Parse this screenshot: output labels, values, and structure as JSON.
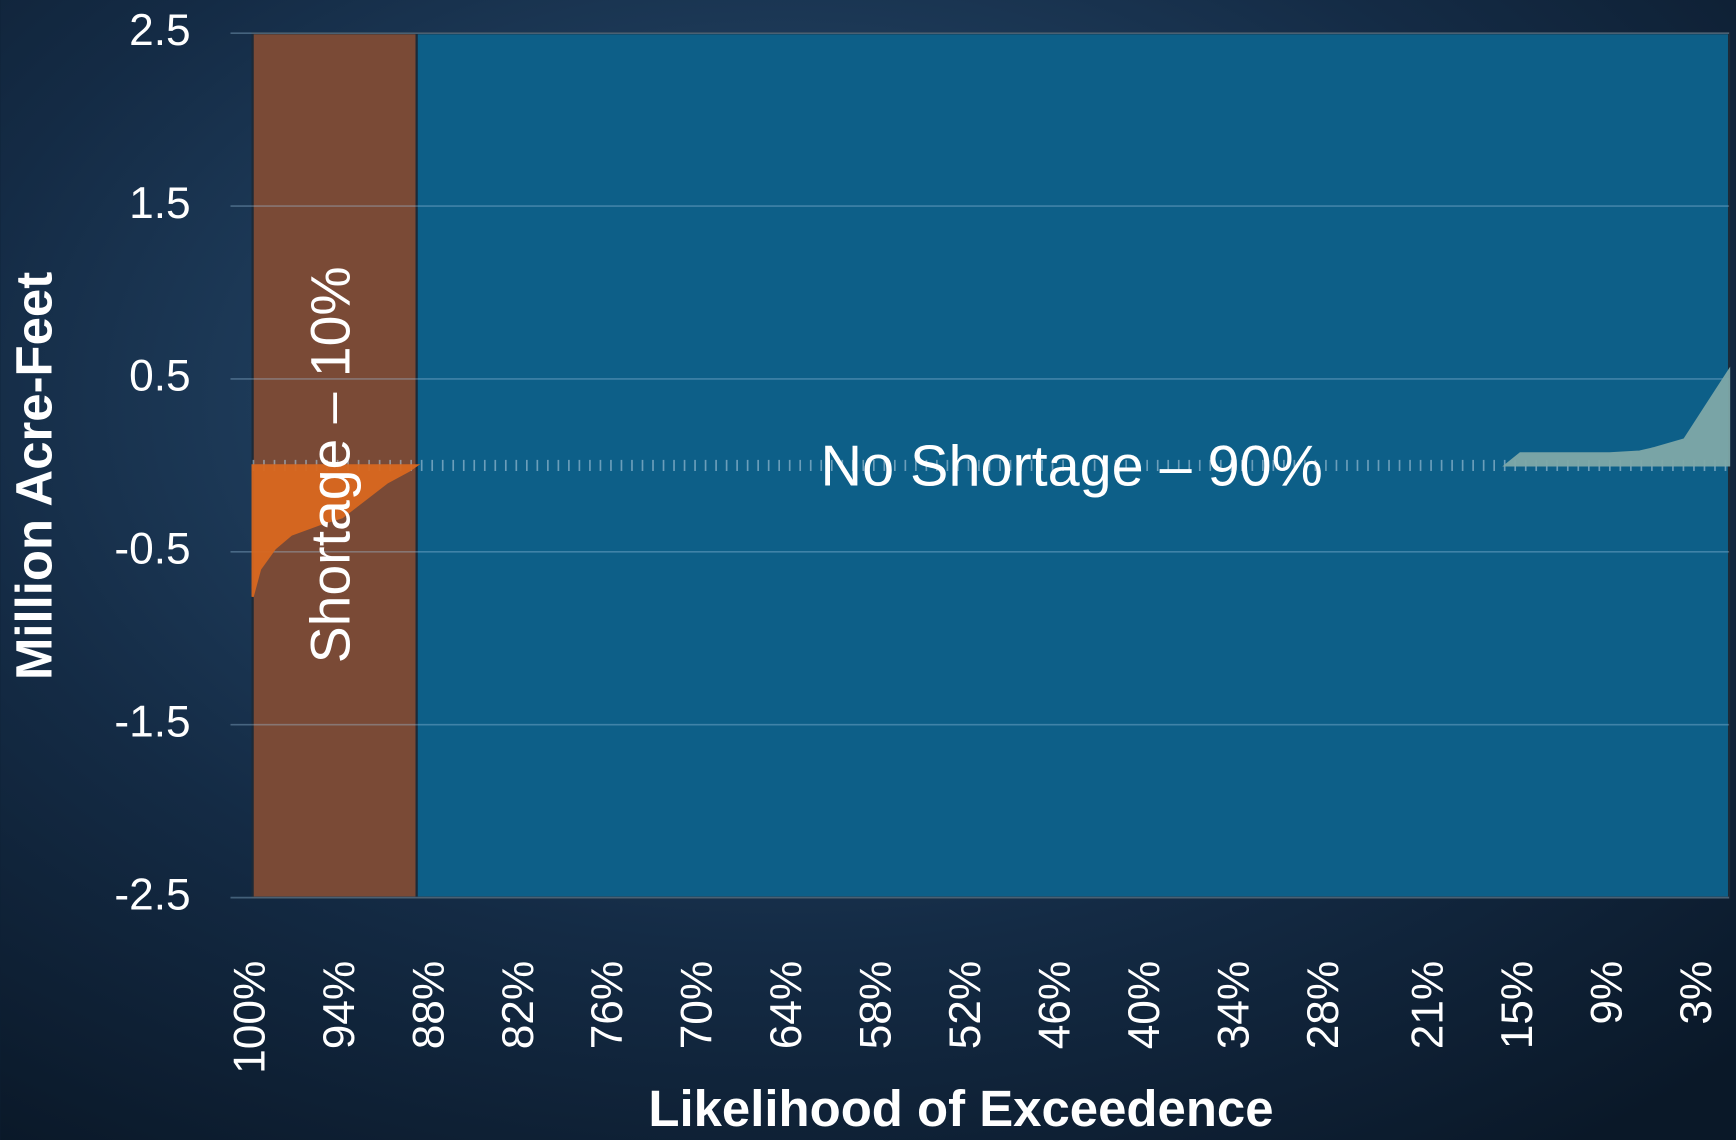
{
  "chart_data": {
    "type": "area",
    "xlabel": "Likelihood of Exceedence",
    "ylabel": "Million Acre-Feet",
    "xlim": [
      100,
      1
    ],
    "ylim": [
      -2.5,
      2.5
    ],
    "yticks": [
      -2.5,
      -1.5,
      -0.5,
      0.5,
      1.5,
      2.5
    ],
    "xticks": [
      {
        "value": 100,
        "label": "100%"
      },
      {
        "value": 94,
        "label": "94%"
      },
      {
        "value": 88,
        "label": "88%"
      },
      {
        "value": 82,
        "label": "82%"
      },
      {
        "value": 76,
        "label": "76%"
      },
      {
        "value": 70,
        "label": "70%"
      },
      {
        "value": 64,
        "label": "64%"
      },
      {
        "value": 58,
        "label": "58%"
      },
      {
        "value": 52,
        "label": "52%"
      },
      {
        "value": 46,
        "label": "46%"
      },
      {
        "value": 40,
        "label": "40%"
      },
      {
        "value": 34,
        "label": "34%"
      },
      {
        "value": 28,
        "label": "28%"
      },
      {
        "value": 21,
        "label": "21%"
      },
      {
        "value": 15,
        "label": "15%"
      },
      {
        "value": 9,
        "label": "9%"
      },
      {
        "value": 3,
        "label": "3%"
      }
    ],
    "grid": true,
    "regions": [
      {
        "label": "Shortage – 10%",
        "from": 100,
        "to": 89,
        "color": "#7a4a36"
      },
      {
        "label": "No Shortage – 90%",
        "from": 89,
        "to": 1,
        "color": "#0d5f88"
      }
    ],
    "series": [
      {
        "color": "#d9681f",
        "x": [
          100,
          99.5,
          98.5,
          97.4,
          95.5,
          94,
          92.5,
          91,
          89.5,
          89
        ],
        "values": [
          -0.76,
          -0.6,
          -0.48,
          -0.4,
          -0.34,
          -0.3,
          -0.2,
          -0.1,
          -0.03,
          0
        ]
      },
      {
        "color": "#7fa8a8",
        "x": [
          16,
          15,
          12,
          9,
          7,
          6,
          4,
          2.5,
          1
        ],
        "values": [
          0,
          0.07,
          0.07,
          0.07,
          0.08,
          0.1,
          0.15,
          0.35,
          0.55
        ]
      }
    ]
  }
}
